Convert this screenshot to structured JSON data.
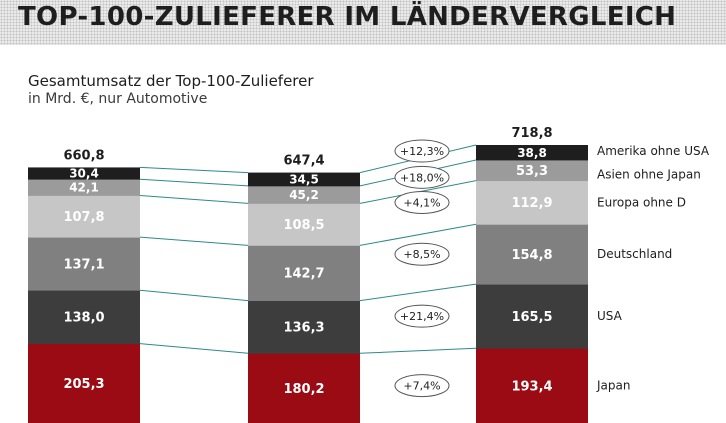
{
  "page": {
    "title": "TOP-100-ZULIEFERER IM LÄNDERVERGLEICH"
  },
  "chart_data": {
    "type": "bar",
    "stacked": true,
    "title": "Gesamtumsatz der Top-100-Zulieferer",
    "subtitle": "in Mrd. €, nur Automotive",
    "totals": [
      "660,8",
      "647,4",
      "718,8"
    ],
    "series": [
      {
        "name": "Japan",
        "values": [
          205.3,
          180.2,
          193.4
        ],
        "labels": [
          "205,3",
          "180,2",
          "193,4"
        ],
        "color": "#9a0b14",
        "text_color": "#ffffff",
        "change": "+7,4%"
      },
      {
        "name": "USA",
        "values": [
          138.0,
          136.3,
          165.5
        ],
        "labels": [
          "138,0",
          "136,3",
          "165,5"
        ],
        "color": "#3d3d3d",
        "text_color": "#ffffff",
        "change": "+21,4%"
      },
      {
        "name": "Deutschland",
        "values": [
          137.1,
          142.7,
          154.8
        ],
        "labels": [
          "137,1",
          "142,7",
          "154,8"
        ],
        "color": "#808080",
        "text_color": "#ffffff",
        "change": "+8,5%"
      },
      {
        "name": "Europa ohne D",
        "values": [
          107.8,
          108.5,
          112.9
        ],
        "labels": [
          "107,8",
          "108,5",
          "112,9"
        ],
        "color": "#c6c6c6",
        "text_color": "#ffffff",
        "change": "+4,1%"
      },
      {
        "name": "Asien ohne Japan",
        "values": [
          42.1,
          45.2,
          53.3
        ],
        "labels": [
          "42,1",
          "45,2",
          "53,3"
        ],
        "color": "#9b9b9b",
        "text_color": "#ffffff",
        "change": "+18,0%"
      },
      {
        "name": "Amerika ohne USA",
        "values": [
          30.4,
          34.5,
          38.8
        ],
        "labels": [
          "30,4",
          "34,5",
          "38,8"
        ],
        "color": "#1e1e1e",
        "text_color": "#ffffff",
        "change": "+12,3%"
      }
    ],
    "connector_color": "#2e8a8a",
    "total_color": "#1e1e1e",
    "legend_text_color": "#1e1e1e"
  }
}
